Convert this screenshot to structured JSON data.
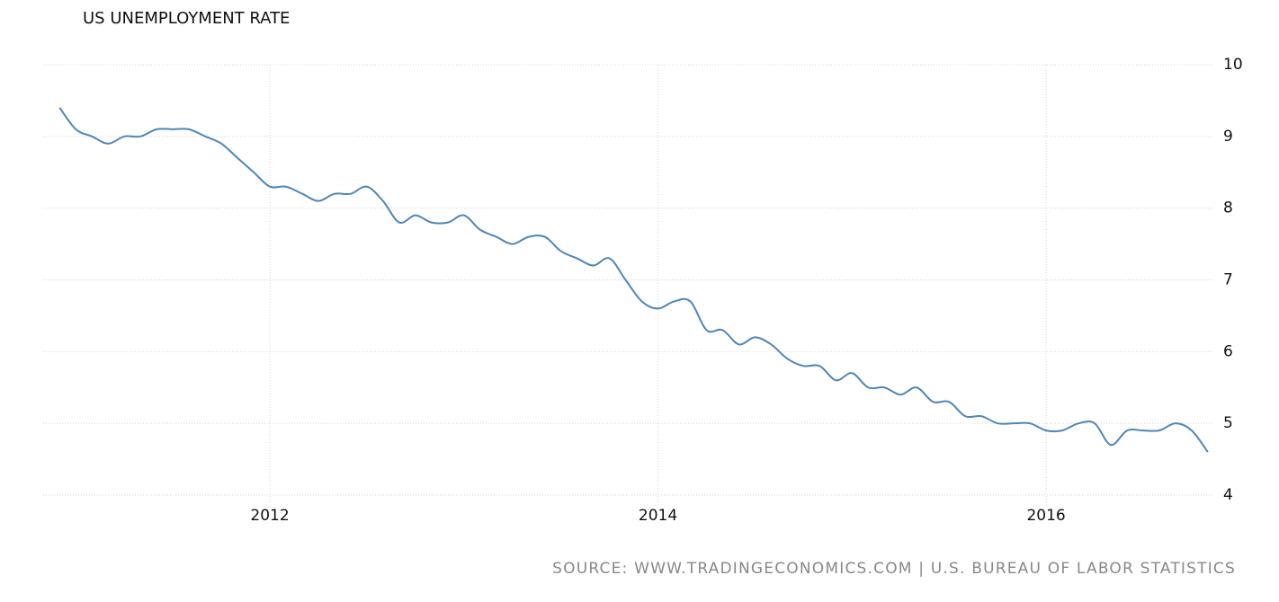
{
  "chart_data": {
    "type": "line",
    "title": "US UNEMPLOYMENT RATE",
    "source": "SOURCE: WWW.TRADINGECONOMICS.COM | U.S. BUREAU OF LABOR STATISTICS",
    "x": [
      2010.917,
      2011.0,
      2011.083,
      2011.167,
      2011.25,
      2011.333,
      2011.417,
      2011.5,
      2011.583,
      2011.667,
      2011.75,
      2011.833,
      2011.917,
      2012.0,
      2012.083,
      2012.167,
      2012.25,
      2012.333,
      2012.417,
      2012.5,
      2012.583,
      2012.667,
      2012.75,
      2012.833,
      2012.917,
      2013.0,
      2013.083,
      2013.167,
      2013.25,
      2013.333,
      2013.417,
      2013.5,
      2013.583,
      2013.667,
      2013.75,
      2013.833,
      2013.917,
      2014.0,
      2014.083,
      2014.167,
      2014.25,
      2014.333,
      2014.417,
      2014.5,
      2014.583,
      2014.667,
      2014.75,
      2014.833,
      2014.917,
      2015.0,
      2015.083,
      2015.167,
      2015.25,
      2015.333,
      2015.417,
      2015.5,
      2015.583,
      2015.667,
      2015.75,
      2015.833,
      2015.917,
      2016.0,
      2016.083,
      2016.167,
      2016.25,
      2016.333,
      2016.417,
      2016.5,
      2016.583,
      2016.667,
      2016.75,
      2016.833
    ],
    "series": [
      {
        "name": "US Unemployment Rate",
        "color": "#4f86b8",
        "values": [
          9.4,
          9.1,
          9.0,
          8.9,
          9.0,
          9.0,
          9.1,
          9.1,
          9.1,
          9.0,
          8.9,
          8.7,
          8.5,
          8.3,
          8.3,
          8.2,
          8.1,
          8.2,
          8.2,
          8.3,
          8.1,
          7.8,
          7.9,
          7.8,
          7.8,
          7.9,
          7.7,
          7.6,
          7.5,
          7.6,
          7.6,
          7.4,
          7.3,
          7.2,
          7.3,
          7.0,
          6.7,
          6.6,
          6.7,
          6.7,
          6.3,
          6.3,
          6.1,
          6.2,
          6.1,
          5.9,
          5.8,
          5.8,
          5.6,
          5.7,
          5.5,
          5.5,
          5.4,
          5.5,
          5.3,
          5.3,
          5.1,
          5.1,
          5.0,
          5.0,
          5.0,
          4.9,
          4.9,
          5.0,
          5.0,
          4.7,
          4.9,
          4.9,
          4.9,
          5.0,
          4.9,
          4.6
        ]
      }
    ],
    "xlim": [
      2010.832,
      2016.857
    ],
    "xticks": [
      2012,
      2014,
      2016
    ],
    "ylim": [
      4,
      10
    ],
    "yticks": [
      4,
      5,
      6,
      7,
      8,
      9,
      10
    ],
    "grid": true
  }
}
